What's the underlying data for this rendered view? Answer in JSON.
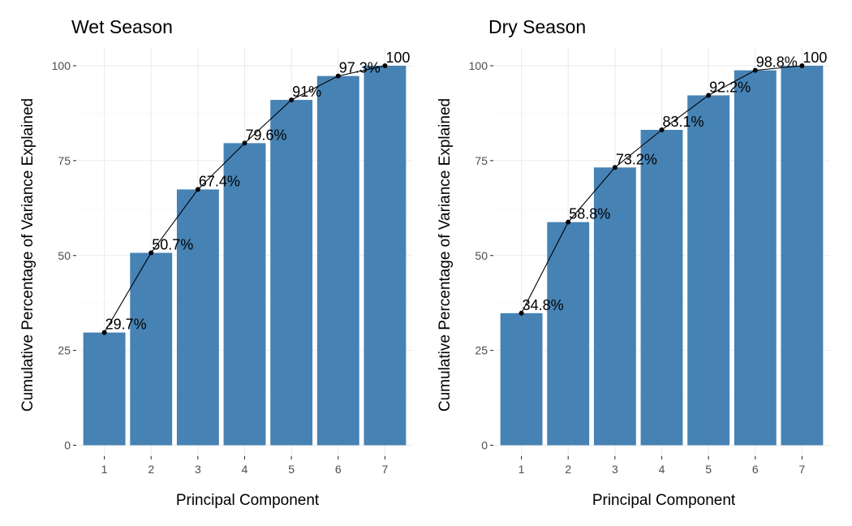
{
  "chart_data": [
    {
      "type": "bar",
      "title": "Wet Season",
      "xlabel": "Principal Component",
      "ylabel": "Cumulative Percentage of Variance Explained",
      "categories": [
        "1",
        "2",
        "3",
        "4",
        "5",
        "6",
        "7"
      ],
      "values": [
        29.7,
        50.7,
        67.4,
        79.6,
        91,
        97.3,
        100
      ],
      "labels": [
        "29.7%",
        "50.7%",
        "67.4%",
        "79.6%",
        "91%",
        "97.3%",
        "100"
      ],
      "yticks": [
        "0",
        "25",
        "50",
        "75",
        "100"
      ],
      "ylim": [
        0,
        100
      ],
      "overlay": "line-with-points",
      "grid": true,
      "bar_color": "#4682b4",
      "line_color": "#000000"
    },
    {
      "type": "bar",
      "title": "Dry Season",
      "xlabel": "Principal Component",
      "ylabel": "Cumulative Percentage of Variance Explained",
      "categories": [
        "1",
        "2",
        "3",
        "4",
        "5",
        "6",
        "7"
      ],
      "values": [
        34.8,
        58.8,
        73.2,
        83.1,
        92.2,
        98.8,
        100
      ],
      "labels": [
        "34.8%",
        "58.8%",
        "73.2%",
        "83.1%",
        "92.2%",
        "98.8%",
        "100"
      ],
      "yticks": [
        "0",
        "25",
        "50",
        "75",
        "100"
      ],
      "ylim": [
        0,
        100
      ],
      "overlay": "line-with-points",
      "grid": true,
      "bar_color": "#4682b4",
      "line_color": "#000000"
    }
  ]
}
